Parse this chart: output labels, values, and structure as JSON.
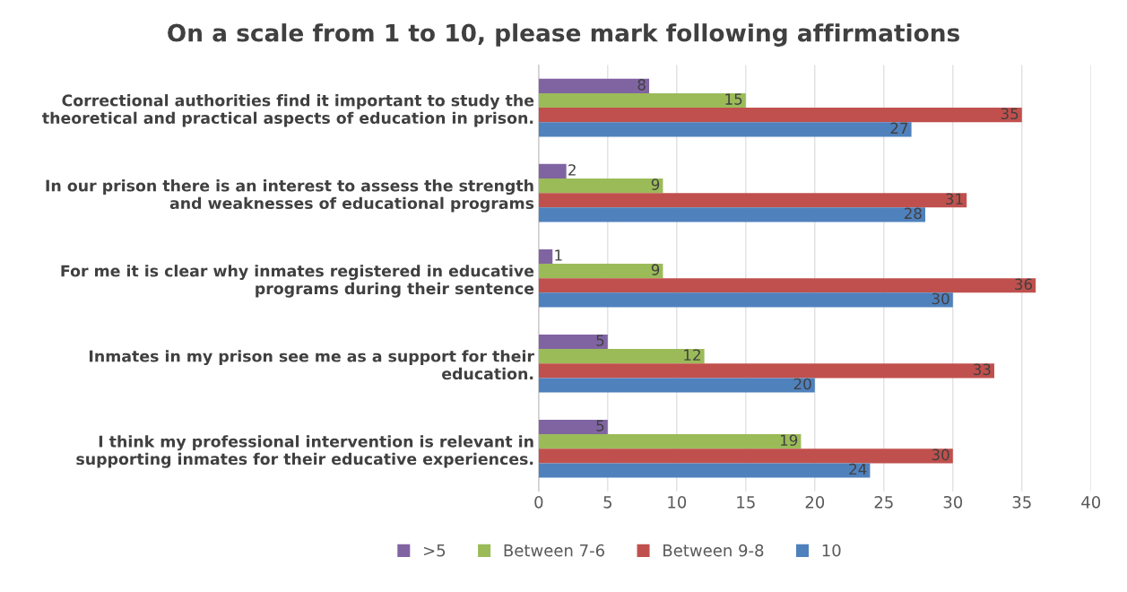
{
  "chart_data": {
    "type": "bar",
    "orientation": "horizontal",
    "title": "On a scale from 1 to 10, please mark following affirmations",
    "categories": [
      "Correctional authorities find it important to study the\ntheoretical and practical aspects of education in prison.",
      "In our prison there is an interest to assess the strength\nand weaknesses of educational programs",
      "For me it is clear why inmates registered in educative\nprograms during their sentence",
      "Inmates in my prison see me as a support for their\neducation.",
      "I think my professional intervention is relevant in\nsupporting inmates for their educative experiences."
    ],
    "series": [
      {
        "name": ">5",
        "color": "#8064a2",
        "values": [
          8,
          2,
          1,
          5,
          5
        ]
      },
      {
        "name": "Between 7-6",
        "color": "#9bbb59",
        "values": [
          15,
          9,
          9,
          12,
          19
        ]
      },
      {
        "name": "Between 9-8",
        "color": "#c0504d",
        "values": [
          35,
          31,
          36,
          33,
          30
        ]
      },
      {
        "name": "10",
        "color": "#4f81bd",
        "values": [
          27,
          28,
          30,
          20,
          24
        ]
      }
    ],
    "xlim": [
      0,
      40
    ],
    "xticks": [
      0,
      5,
      10,
      15,
      20,
      25,
      30,
      35,
      40
    ],
    "grid": "x",
    "legend": "bottom",
    "data_labels": true
  }
}
